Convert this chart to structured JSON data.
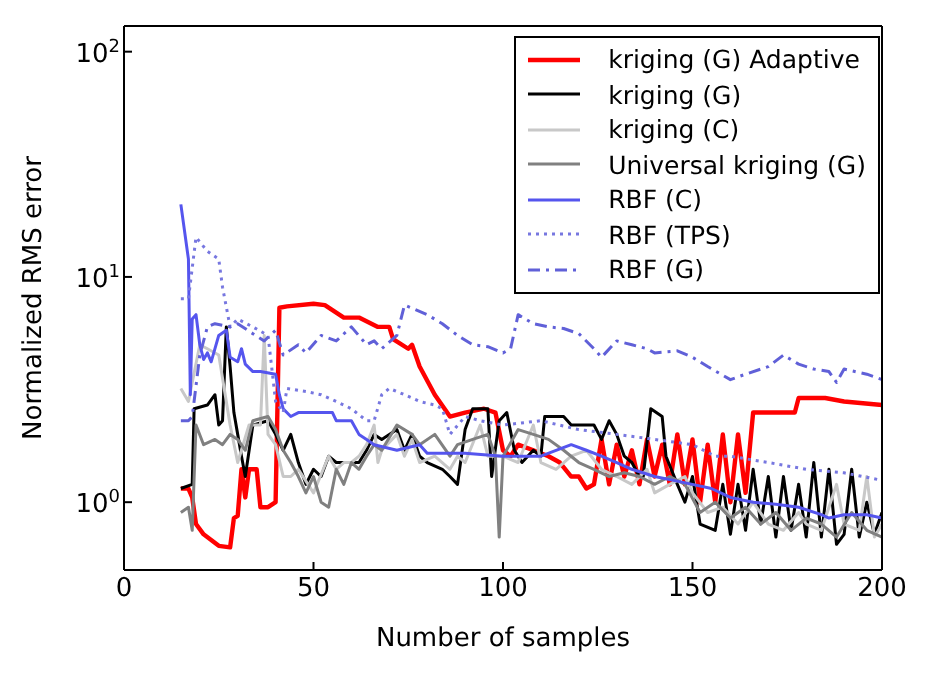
{
  "chart_data": {
    "type": "line",
    "xlabel": "Number of samples",
    "ylabel": "Normalized RMS error",
    "log": "y",
    "xlim": [
      0,
      200
    ],
    "xticks": [
      0,
      50,
      100,
      150,
      200
    ],
    "ylim": [
      0.5,
      130
    ],
    "yticks": [
      {
        "value": 1,
        "label": "10$^{0}$"
      },
      {
        "value": 10,
        "label": "10$^{1}$"
      },
      {
        "value": 100,
        "label": "10$^{2}$"
      }
    ],
    "grid": false,
    "legend": "top right",
    "marker": "none",
    "series": [
      {
        "name": "kriging (G) Adaptive",
        "color": "#ff0000",
        "line_style": "solid",
        "x": [
          15,
          17,
          18,
          19,
          21,
          23,
          25,
          28,
          29,
          30,
          31,
          32,
          33,
          35,
          36,
          38,
          40,
          41,
          43,
          50,
          53,
          58,
          62,
          67,
          70,
          71,
          75,
          76,
          78,
          82,
          86,
          90,
          95,
          98,
          100,
          102,
          104,
          108,
          112,
          115,
          118,
          120,
          122,
          124,
          126,
          128,
          130,
          132,
          134,
          136,
          138,
          140,
          142,
          144,
          146,
          148,
          150,
          152,
          154,
          156,
          158,
          160,
          162,
          164,
          166,
          177,
          178,
          185,
          190,
          200
        ],
        "values": [
          1.15,
          1.15,
          1.05,
          0.8,
          0.72,
          0.68,
          0.64,
          0.63,
          0.85,
          0.87,
          1.4,
          1.05,
          1.4,
          1.4,
          0.95,
          0.95,
          1.0,
          7.3,
          7.4,
          7.6,
          7.5,
          6.6,
          6.6,
          6.0,
          6.0,
          5.3,
          4.8,
          5.0,
          4.0,
          3.0,
          2.4,
          2.5,
          2.6,
          2.5,
          1.7,
          1.6,
          1.8,
          1.7,
          1.6,
          1.5,
          1.3,
          1.3,
          1.15,
          1.2,
          1.9,
          1.2,
          1.8,
          1.3,
          1.7,
          1.2,
          1.9,
          1.3,
          1.8,
          1.2,
          2.0,
          1.2,
          1.9,
          1.0,
          1.8,
          1.0,
          2.0,
          1.0,
          2.0,
          1.1,
          2.5,
          2.5,
          2.9,
          2.9,
          2.8,
          2.7
        ]
      },
      {
        "name": "kriging (G)",
        "color": "#000000",
        "line_style": "solid",
        "x": [
          15,
          18,
          18.5,
          22,
          24,
          25,
          26,
          27,
          28,
          29,
          30,
          31,
          32,
          34,
          38,
          40,
          42,
          44,
          46,
          48,
          50,
          52,
          54,
          56,
          62,
          64,
          66,
          68,
          72,
          74,
          76,
          78,
          80,
          84,
          86,
          88,
          90,
          92,
          96,
          97,
          99,
          101,
          103,
          105,
          108,
          110,
          111,
          116,
          118,
          122,
          124,
          126,
          128,
          130,
          132,
          134,
          136,
          137,
          139,
          142,
          143,
          146,
          148,
          150,
          152,
          156,
          158,
          160,
          162,
          164,
          166,
          168,
          170,
          172,
          174,
          176,
          178,
          180,
          182,
          184,
          186,
          188,
          190,
          192,
          194,
          196,
          198,
          200
        ],
        "values": [
          1.15,
          1.2,
          2.6,
          2.7,
          3.0,
          2.2,
          2.3,
          6.0,
          4.0,
          2.5,
          2.0,
          1.6,
          1.3,
          2.2,
          2.3,
          2.0,
          1.7,
          2.0,
          1.5,
          1.2,
          1.4,
          1.3,
          1.6,
          1.5,
          1.5,
          1.7,
          2.0,
          1.9,
          2.1,
          1.7,
          2.0,
          1.6,
          1.5,
          1.4,
          1.3,
          1.2,
          2.1,
          2.6,
          2.6,
          1.3,
          2.3,
          2.5,
          1.7,
          1.5,
          1.7,
          1.6,
          2.4,
          2.4,
          2.2,
          2.2,
          2.2,
          1.9,
          2.3,
          2.0,
          1.6,
          1.5,
          1.3,
          1.3,
          2.6,
          2.4,
          1.6,
          1.2,
          1.0,
          1.3,
          0.8,
          0.75,
          1.2,
          0.72,
          1.2,
          0.75,
          1.4,
          0.8,
          1.3,
          0.7,
          1.3,
          0.75,
          1.2,
          0.7,
          1.5,
          0.7,
          1.4,
          0.65,
          0.72,
          1.4,
          0.7,
          1.0,
          0.72,
          0.9
        ]
      },
      {
        "name": "kriging (C)",
        "color": "#c8c8c8",
        "line_style": "solid",
        "x": [
          15,
          17,
          20,
          22,
          25,
          28,
          30,
          33,
          36,
          37,
          38,
          40,
          42,
          44,
          46,
          50,
          54,
          56,
          58,
          60,
          62,
          64,
          66,
          67,
          68,
          72,
          74,
          76,
          78,
          82,
          86,
          88,
          90,
          94,
          96,
          100,
          104,
          108,
          110,
          114,
          118,
          122,
          126,
          130,
          134,
          138,
          140,
          144,
          148,
          150,
          154,
          158,
          162,
          166,
          170,
          174,
          178,
          180,
          184,
          188,
          190,
          194,
          196,
          198,
          200
        ],
        "values": [
          3.2,
          2.8,
          5.0,
          4.8,
          4.5,
          2.2,
          1.5,
          2.2,
          2.2,
          5.5,
          2.0,
          1.8,
          1.3,
          1.3,
          1.4,
          1.1,
          1.6,
          1.4,
          1.5,
          1.5,
          1.6,
          1.8,
          2.2,
          1.5,
          1.7,
          2.0,
          1.6,
          1.9,
          1.5,
          1.6,
          1.4,
          1.6,
          1.5,
          2.2,
          1.6,
          1.6,
          1.5,
          2.2,
          1.5,
          1.4,
          1.6,
          1.7,
          1.4,
          1.3,
          1.2,
          1.4,
          1.1,
          1.2,
          1.3,
          1.1,
          0.9,
          0.95,
          0.8,
          1.0,
          0.8,
          0.75,
          0.9,
          0.8,
          0.75,
          1.2,
          0.8,
          0.75,
          1.3,
          0.7,
          0.8
        ]
      },
      {
        "name": "Universal kriging (G)",
        "color": "#808080",
        "line_style": "solid",
        "x": [
          15,
          17,
          18,
          19,
          21,
          24,
          26,
          28,
          30,
          32,
          34,
          38,
          40,
          42,
          44,
          46,
          48,
          50,
          52,
          54,
          56,
          58,
          60,
          62,
          64,
          66,
          68,
          72,
          76,
          78,
          82,
          86,
          88,
          92,
          96,
          98,
          99,
          100,
          104,
          108,
          112,
          116,
          120,
          124,
          128,
          132,
          136,
          140,
          144,
          148,
          152,
          156,
          160,
          164,
          168,
          172,
          176,
          180,
          184,
          188,
          192,
          196,
          200
        ],
        "values": [
          0.9,
          0.95,
          0.75,
          2.2,
          1.8,
          1.9,
          1.8,
          2.0,
          1.9,
          1.7,
          2.3,
          2.4,
          2.1,
          1.7,
          1.5,
          1.3,
          1.1,
          1.3,
          1.0,
          0.95,
          1.4,
          1.2,
          1.5,
          1.4,
          1.6,
          1.8,
          1.7,
          2.2,
          2.0,
          1.8,
          2.0,
          1.6,
          1.8,
          1.9,
          2.0,
          1.6,
          0.7,
          1.6,
          2.1,
          2.0,
          1.9,
          1.7,
          1.5,
          1.4,
          1.3,
          1.35,
          1.3,
          1.2,
          1.3,
          1.2,
          0.9,
          1.0,
          0.85,
          0.95,
          0.8,
          0.9,
          0.75,
          0.85,
          0.8,
          0.7,
          0.9,
          0.75,
          0.7
        ]
      },
      {
        "name": "RBF (C)",
        "color": "#5555ee",
        "line_style": "solid",
        "x": [
          15,
          17,
          17.5,
          18,
          19,
          20,
          21,
          22,
          23,
          25,
          27,
          28,
          30,
          31,
          32,
          34,
          36,
          40,
          41,
          42,
          44,
          46,
          55,
          56,
          60,
          62,
          64,
          66,
          72,
          78,
          80,
          90,
          100,
          110,
          118,
          122,
          126,
          130,
          134,
          140,
          145,
          150,
          155,
          160,
          166,
          172,
          178,
          184,
          186,
          190,
          196,
          200
        ],
        "values": [
          21,
          12,
          3.0,
          6.5,
          6.8,
          5.0,
          4.3,
          4.6,
          4.2,
          5.5,
          5.8,
          4.4,
          4.2,
          4.8,
          4.1,
          3.8,
          3.8,
          3.7,
          3.0,
          2.6,
          2.4,
          2.5,
          2.5,
          2.3,
          2.3,
          2.0,
          1.9,
          1.8,
          1.7,
          1.8,
          1.65,
          1.65,
          1.6,
          1.6,
          1.8,
          1.7,
          1.6,
          1.5,
          1.4,
          1.3,
          1.25,
          1.2,
          1.15,
          1.05,
          1.0,
          0.98,
          0.95,
          0.88,
          0.85,
          0.88,
          0.88,
          0.85
        ]
      },
      {
        "name": "RBF (TPS)",
        "color": "#7777e0",
        "line_style": "dotted",
        "x": [
          15,
          17,
          19,
          22,
          25,
          26,
          28,
          30,
          34,
          38,
          40,
          42,
          43,
          48,
          52,
          56,
          60,
          64,
          66,
          68,
          70,
          74,
          78,
          82,
          84,
          86,
          90,
          94,
          100,
          110,
          120,
          130,
          140,
          150,
          156,
          160,
          170,
          180,
          190,
          200
        ],
        "values": [
          8.0,
          8.0,
          15,
          13,
          12,
          9,
          6.0,
          6.5,
          6.0,
          5.5,
          2.8,
          2.5,
          3.2,
          3.1,
          3.0,
          2.8,
          2.6,
          2.3,
          2.3,
          3.0,
          3.2,
          3.0,
          2.8,
          2.7,
          2.6,
          2.0,
          2.4,
          2.3,
          2.2,
          2.3,
          2.1,
          2.0,
          1.9,
          1.8,
          1.6,
          1.6,
          1.5,
          1.4,
          1.35,
          1.25
        ]
      },
      {
        "name": "RBF (G)",
        "color": "#6060d8",
        "line_style": "dashdot",
        "x": [
          15,
          17,
          18,
          20,
          22,
          24,
          28,
          30,
          34,
          37,
          40,
          42,
          46,
          48,
          52,
          56,
          60,
          64,
          66,
          68,
          72,
          74,
          80,
          84,
          88,
          92,
          96,
          100,
          102,
          104,
          108,
          112,
          116,
          120,
          124,
          126,
          130,
          134,
          138,
          140,
          146,
          150,
          154,
          160,
          164,
          170,
          174,
          178,
          182,
          186,
          188,
          190,
          196,
          200
        ],
        "values": [
          2.3,
          2.3,
          2.4,
          4.5,
          6.0,
          6.2,
          6.0,
          6.2,
          5.6,
          5.2,
          5.8,
          4.5,
          5.0,
          4.6,
          5.5,
          5.2,
          6.0,
          5.0,
          5.2,
          4.8,
          5.5,
          7.5,
          6.8,
          6.2,
          5.5,
          5.0,
          4.9,
          4.6,
          4.8,
          6.8,
          6.2,
          6.0,
          5.9,
          5.6,
          4.8,
          4.4,
          5.2,
          5.0,
          4.8,
          4.6,
          4.7,
          4.4,
          4.0,
          3.5,
          3.7,
          4.0,
          4.5,
          4.1,
          3.9,
          3.8,
          3.4,
          3.9,
          3.7,
          3.5
        ]
      }
    ]
  }
}
